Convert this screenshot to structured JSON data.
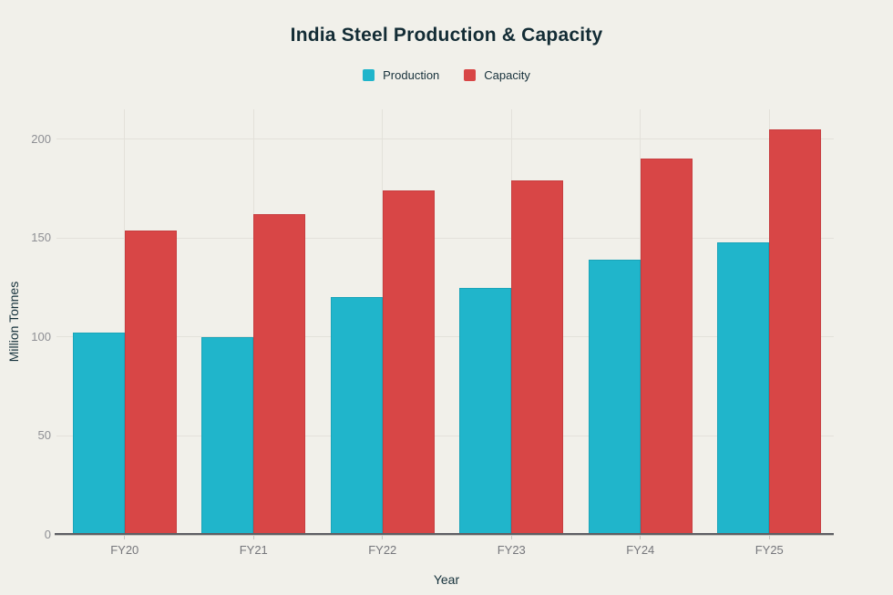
{
  "chart_data": {
    "type": "bar",
    "title": "India Steel Production & Capacity",
    "xlabel": "Year",
    "ylabel": "Million Tonnes",
    "categories": [
      "FY20",
      "FY21",
      "FY22",
      "FY23",
      "FY24",
      "FY25"
    ],
    "series": [
      {
        "name": "Production",
        "values": [
          102,
          100,
          120,
          125,
          139,
          148
        ],
        "color": "#20b5cb",
        "border_color": "#1aa4b9"
      },
      {
        "name": "Capacity",
        "values": [
          154,
          162,
          174,
          179,
          190,
          205
        ],
        "color": "#d84646",
        "border_color": "#c73e40"
      }
    ],
    "yticks": [
      0,
      50,
      100,
      150,
      200
    ],
    "ylim": [
      0,
      215
    ],
    "grid": true,
    "legend_position": "top"
  },
  "colors": {
    "background": "#f1f0ea",
    "title_text": "#132c35",
    "axis_title_text": "#15313b",
    "y_tick_text": "#8e8f94",
    "x_tick_text": "#75767b",
    "gridline": "#e3e1da",
    "baseline": "#5d5e63"
  }
}
